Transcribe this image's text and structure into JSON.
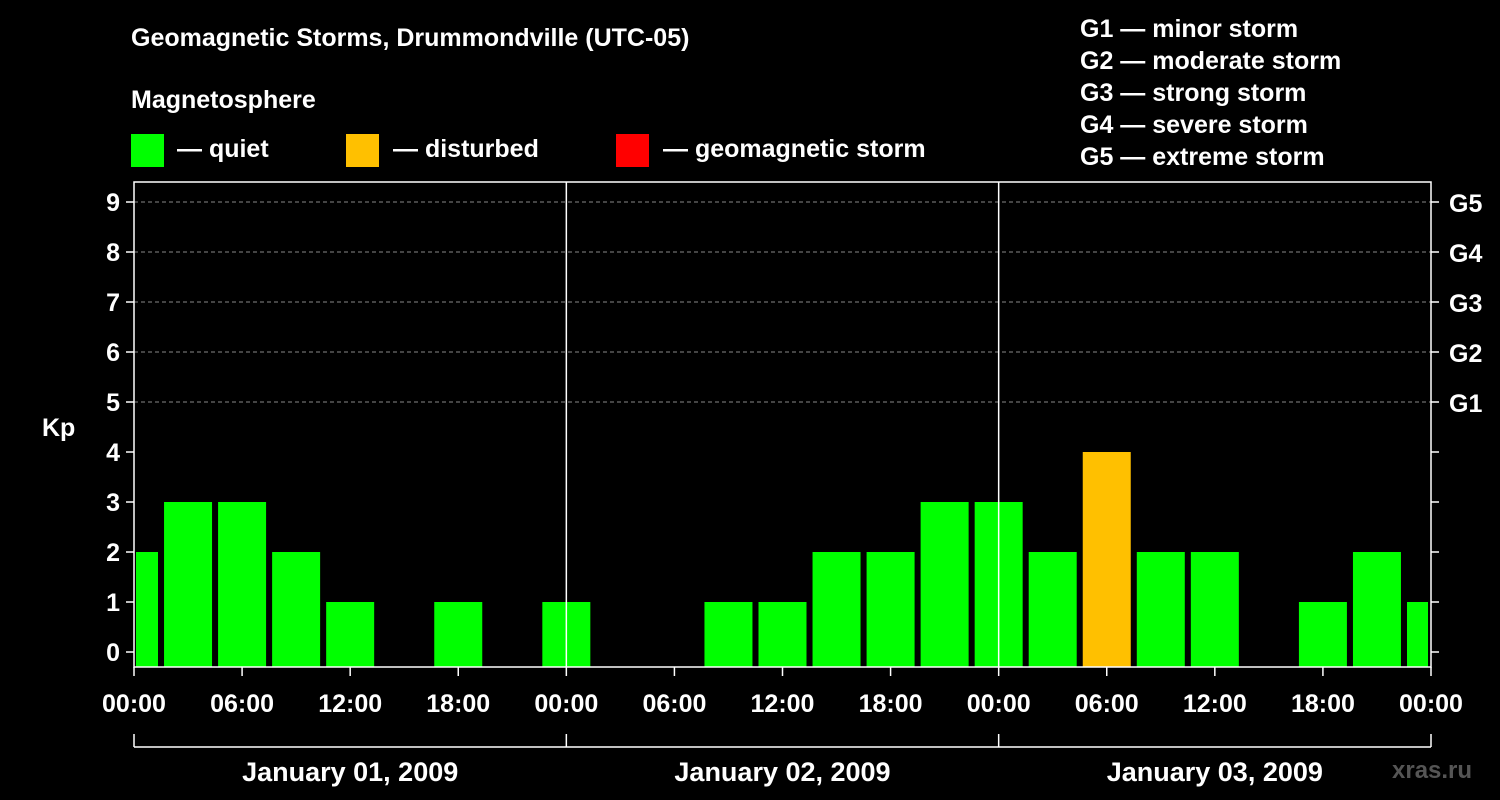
{
  "title": "Geomagnetic Storms, Drummondville (UTC-05)",
  "subtitle": "Magnetosphere",
  "legend": [
    {
      "key": "quiet",
      "label": "— quiet",
      "color": "#00ff00"
    },
    {
      "key": "disturbed",
      "label": "— disturbed",
      "color": "#ffc000"
    },
    {
      "key": "storm",
      "label": "— geomagnetic storm",
      "color": "#ff0000"
    }
  ],
  "storm_scale": [
    "G1 — minor storm",
    "G2 — moderate storm",
    "G3 — strong storm",
    "G4 — severe storm",
    "G5 — extreme storm"
  ],
  "watermark": "xras.ru",
  "chart_data": {
    "type": "bar",
    "ylabel": "Kp",
    "ylim": [
      0,
      9
    ],
    "yticks": [
      0,
      1,
      2,
      3,
      4,
      5,
      6,
      7,
      8,
      9
    ],
    "right_ticks": [
      {
        "value": 5,
        "label": "G1"
      },
      {
        "value": 6,
        "label": "G2"
      },
      {
        "value": 7,
        "label": "G3"
      },
      {
        "value": 8,
        "label": "G4"
      },
      {
        "value": 9,
        "label": "G5"
      }
    ],
    "grid": "horizontal dashed at 5–9",
    "x_tick_labels": [
      "00:00",
      "06:00",
      "12:00",
      "18:00",
      "00:00",
      "06:00",
      "12:00",
      "18:00",
      "00:00",
      "06:00",
      "12:00",
      "18:00",
      "00:00"
    ],
    "days": [
      "January 01, 2009",
      "January 02, 2009",
      "January 03, 2009"
    ],
    "bars": [
      {
        "start": "2009-01-01 00:00",
        "kp": 2,
        "status": "quiet"
      },
      {
        "start": "2009-01-01 03:00",
        "kp": 3,
        "status": "quiet"
      },
      {
        "start": "2009-01-01 06:00",
        "kp": 3,
        "status": "quiet"
      },
      {
        "start": "2009-01-01 09:00",
        "kp": 2,
        "status": "quiet"
      },
      {
        "start": "2009-01-01 12:00",
        "kp": 1,
        "status": "quiet"
      },
      {
        "start": "2009-01-01 15:00",
        "kp": 0,
        "status": "quiet"
      },
      {
        "start": "2009-01-01 18:00",
        "kp": 1,
        "status": "quiet"
      },
      {
        "start": "2009-01-01 21:00",
        "kp": 0,
        "status": "quiet"
      },
      {
        "start": "2009-01-02 00:00",
        "kp": 1,
        "status": "quiet"
      },
      {
        "start": "2009-01-02 03:00",
        "kp": 0,
        "status": "quiet"
      },
      {
        "start": "2009-01-02 06:00",
        "kp": 0,
        "status": "quiet"
      },
      {
        "start": "2009-01-02 09:00",
        "kp": 1,
        "status": "quiet"
      },
      {
        "start": "2009-01-02 12:00",
        "kp": 1,
        "status": "quiet"
      },
      {
        "start": "2009-01-02 15:00",
        "kp": 2,
        "status": "quiet"
      },
      {
        "start": "2009-01-02 18:00",
        "kp": 2,
        "status": "quiet"
      },
      {
        "start": "2009-01-02 21:00",
        "kp": 3,
        "status": "quiet"
      },
      {
        "start": "2009-01-03 00:00",
        "kp": 3,
        "status": "quiet"
      },
      {
        "start": "2009-01-03 03:00",
        "kp": 2,
        "status": "quiet"
      },
      {
        "start": "2009-01-03 06:00",
        "kp": 4,
        "status": "disturbed"
      },
      {
        "start": "2009-01-03 09:00",
        "kp": 2,
        "status": "quiet"
      },
      {
        "start": "2009-01-03 12:00",
        "kp": 2,
        "status": "quiet"
      },
      {
        "start": "2009-01-03 15:00",
        "kp": 0,
        "status": "quiet"
      },
      {
        "start": "2009-01-03 18:00",
        "kp": 1,
        "status": "quiet"
      },
      {
        "start": "2009-01-03 21:00",
        "kp": 2,
        "status": "quiet"
      },
      {
        "start": "2009-01-04 00:00",
        "kp": 1,
        "status": "quiet"
      }
    ]
  }
}
